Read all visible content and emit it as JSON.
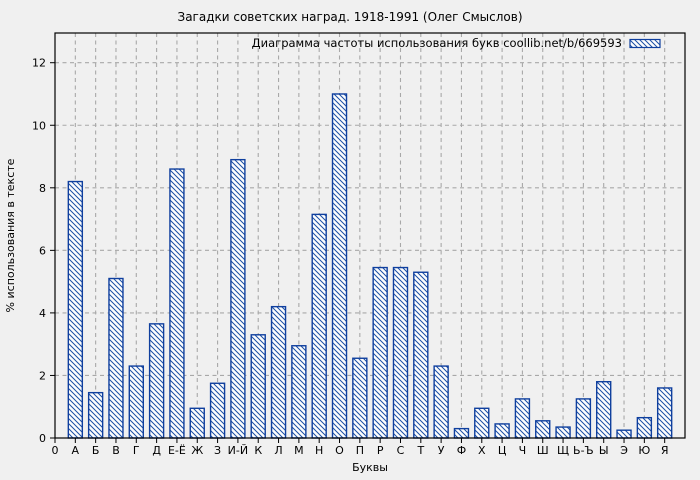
{
  "title": "Загадки советских наград. 1918-1991 (Олег Смыслов)",
  "chart_data": {
    "type": "bar",
    "title": "Загадки советских наград. 1918-1991 (Олег Смыслов)",
    "legend": "Диаграмма частоты использования букв coollib.net/b/669593",
    "legend_position": "top-right-inside",
    "xlabel": "Буквы",
    "ylabel": "% использования в тексте",
    "x_origin_label": "0",
    "ylim": [
      0,
      13
    ],
    "yticks": [
      0,
      2,
      4,
      6,
      8,
      10,
      12
    ],
    "grid": true,
    "categories": [
      "А",
      "Б",
      "В",
      "Г",
      "Д",
      "Е-Ё",
      "Ж",
      "З",
      "И-Й",
      "К",
      "Л",
      "М",
      "Н",
      "О",
      "П",
      "Р",
      "С",
      "Т",
      "У",
      "Ф",
      "Х",
      "Ц",
      "Ч",
      "Ш",
      "Щ",
      "Ь-Ъ",
      "Ы",
      "Э",
      "Ю",
      "Я"
    ],
    "values": [
      8.2,
      1.45,
      5.1,
      2.3,
      3.65,
      8.6,
      0.95,
      1.75,
      8.9,
      3.3,
      4.2,
      2.95,
      7.15,
      11.0,
      2.55,
      5.45,
      5.45,
      5.3,
      2.3,
      0.3,
      0.95,
      0.45,
      1.25,
      0.55,
      0.35,
      1.25,
      1.8,
      0.25,
      0.65,
      1.6
    ],
    "colors": {
      "background": "#f0f0f0",
      "bar_stroke": "#0f3f9e",
      "bar_hatch": "#1a4fa5",
      "bar_fill": "#fdfdfd",
      "grid": "#a8a8a8",
      "axis": "#000000",
      "text": "#000000"
    }
  }
}
